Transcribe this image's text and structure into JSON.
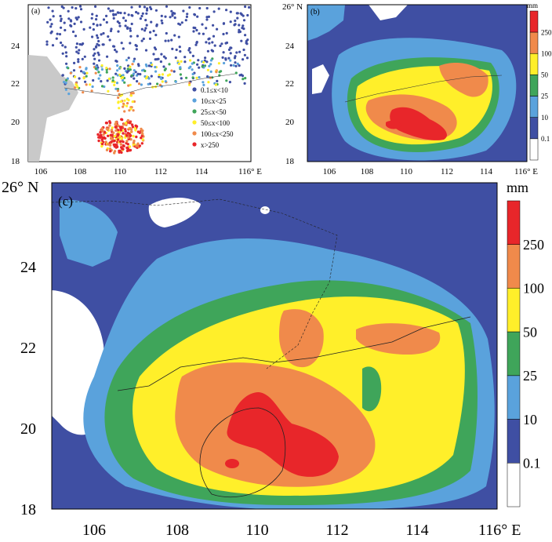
{
  "panels": {
    "a": {
      "label": "(a)",
      "y_ticks": [
        "24",
        "22",
        "20",
        "18"
      ],
      "x_ticks": [
        "106",
        "108",
        "110",
        "112",
        "114",
        "116° E"
      ],
      "legend": [
        {
          "label": "0.1≤x<10",
          "color": "#3f4fa3"
        },
        {
          "label": "10≤x<25",
          "color": "#5aa2dc"
        },
        {
          "label": "25≤x<50",
          "color": "#3fa55a"
        },
        {
          "label": "50≤x<100",
          "color": "#ffef2a"
        },
        {
          "label": "100≤x<250",
          "color": "#f08a4b"
        },
        {
          "label": "x>250",
          "color": "#e8262a"
        }
      ]
    },
    "b": {
      "label": "(b)",
      "y_top": "26° N",
      "y_ticks": [
        "24",
        "22",
        "20",
        "18"
      ],
      "x_ticks": [
        "106",
        "108",
        "110",
        "112",
        "114",
        "116° E"
      ],
      "unit": "mm",
      "colorbar_ticks": [
        "250",
        "100",
        "50",
        "25",
        "10",
        "0.1"
      ]
    },
    "c": {
      "label": "(c)",
      "y_top": "26° N",
      "y_ticks": [
        "24",
        "22",
        "20",
        "18"
      ],
      "x_ticks": [
        "106",
        "108",
        "110",
        "112",
        "114",
        "116° E"
      ],
      "unit": "mm",
      "colorbar_ticks": [
        "250",
        "100",
        "50",
        "25",
        "10",
        "0.1"
      ]
    }
  },
  "colors": {
    "white": "#ffffff",
    "0.1-10": "#3f4fa3",
    "10-25": "#5aa2dc",
    "25-50": "#3fa55a",
    "50-100": "#ffef2a",
    "100-250": "#f08a4b",
    ">250": "#e8262a",
    "land_gray": "#c9c9c9"
  }
}
